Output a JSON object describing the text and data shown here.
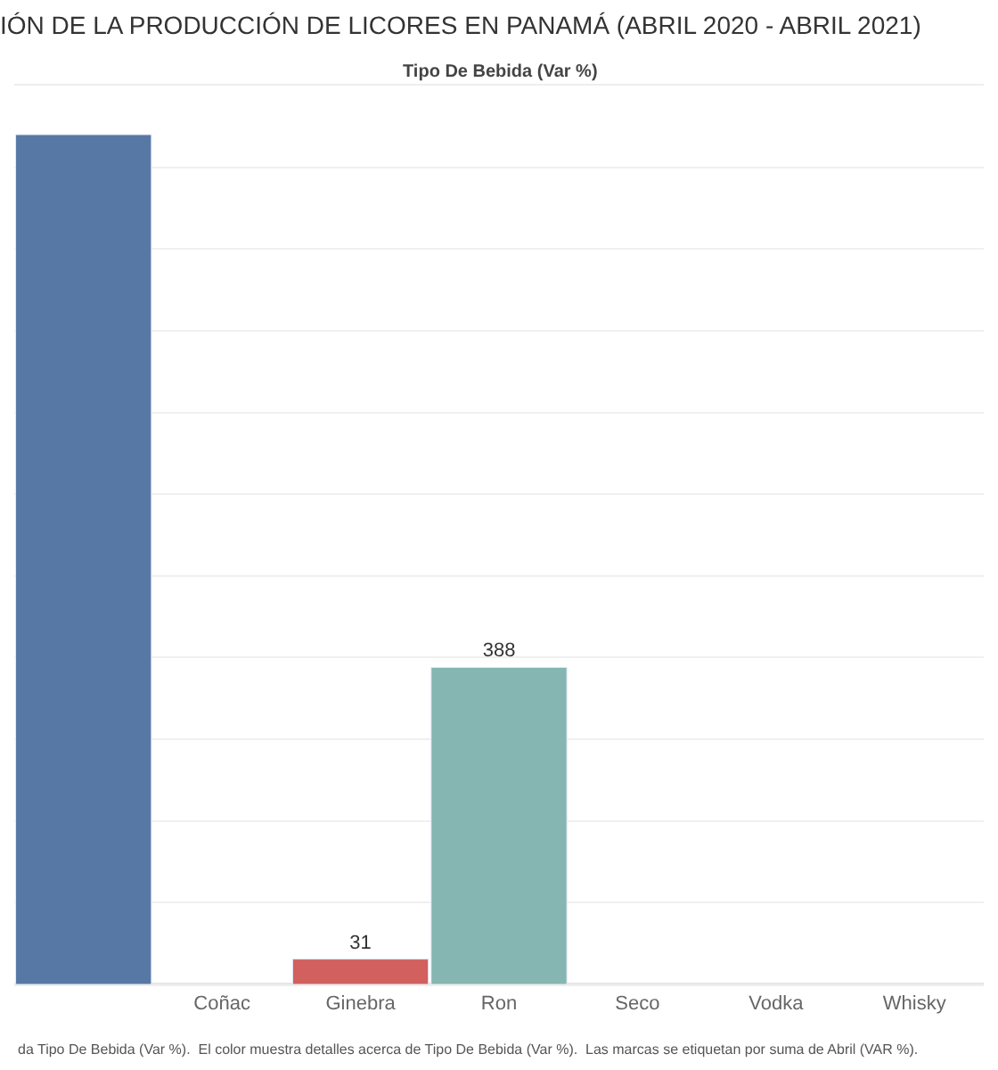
{
  "chart_data": {
    "type": "bar",
    "title": "IÓN DE LA PRODUCCIÓN DE LICORES EN PANAMÁ (ABRIL 2020 - ABRIL 2021)",
    "subtitle": "Tipo De Bebida (Var %)",
    "categories": [
      null,
      "Coñac",
      "Ginebra",
      "Ron",
      "Seco",
      "Vodka",
      "Whisky"
    ],
    "values": [
      1040,
      null,
      31,
      388,
      null,
      null,
      null
    ],
    "colors": [
      "#5778a4",
      "#5778a4",
      "#d1605e",
      "#85b6b2",
      "#85b6b2",
      "#85b6b2",
      "#85b6b2"
    ],
    "value_labels": [
      null,
      null,
      "31",
      "388",
      null,
      null,
      null
    ],
    "ylim": [
      0,
      1100
    ],
    "yticks": [
      {
        "value": 100,
        "label": null
      },
      {
        "value": 200,
        "label": null
      },
      {
        "value": 300,
        "label": null
      },
      {
        "value": 400,
        "label": null
      },
      {
        "value": 500,
        "label": null
      },
      {
        "value": 600,
        "label": null
      },
      {
        "value": 700,
        "label": null
      },
      {
        "value": 800,
        "label": null
      },
      {
        "value": 900,
        "label": null
      },
      {
        "value": 1000,
        "label": null
      }
    ],
    "tick_labels": "x",
    "grid": "y",
    "annotations": [
      "da Tipo De Bebida (Var %).  El color muestra detalles acerca de Tipo De Bebida (Var %).  Las marcas se etiquetan por suma de Abril (VAR %)."
    ]
  }
}
